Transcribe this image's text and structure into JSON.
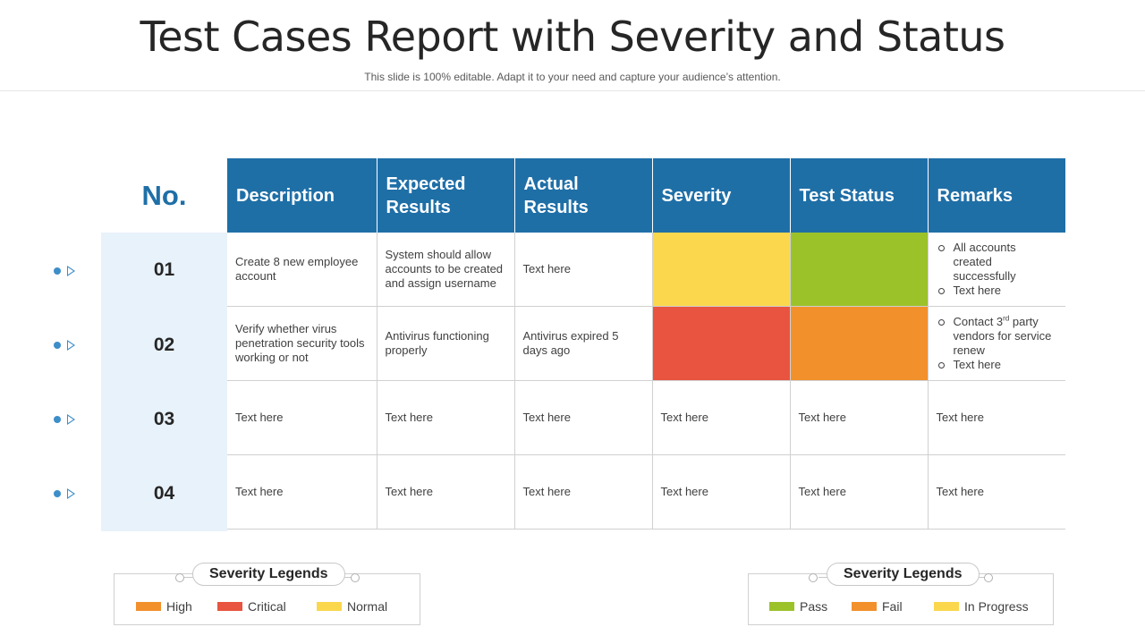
{
  "header": {
    "title": "Test Cases Report with Severity and Status",
    "subtitle": "This slide is 100% editable. Adapt it to your need and capture your audience’s attention."
  },
  "table": {
    "no_header": "No.",
    "columns": [
      "Description",
      "Expected Results",
      "Actual Results",
      "Severity",
      "Test Status",
      "Remarks"
    ],
    "rows": [
      {
        "no": "01",
        "description": "Create 8 new employee account",
        "expected": "System should allow accounts to be created and assign username",
        "actual": "Text here",
        "severity_color": "#fad74d",
        "status_color": "#9cc22a",
        "remarks": [
          "All accounts created successfully",
          "Text here"
        ]
      },
      {
        "no": "02",
        "description": "Verify whether virus penetration security tools working or not",
        "expected": "Antivirus functioning properly",
        "actual": "Antivirus expired 5 days ago",
        "severity_color": "#e85440",
        "status_color": "#f2902c",
        "remarks_first_pre": "Contact 3",
        "remarks_first_sup": "rd",
        "remarks_first_post": " party vendors for service renew",
        "remarks_second": "Text here"
      },
      {
        "no": "03",
        "description": "Text here",
        "expected": "Text here",
        "actual": "Text here",
        "severity": "Text here",
        "status": "Text here",
        "remarks": "Text here"
      },
      {
        "no": "04",
        "description": "Text here",
        "expected": "Text here",
        "actual": "Text here",
        "severity": "Text here",
        "status": "Text here",
        "remarks": "Text here"
      }
    ]
  },
  "legend_severity": {
    "title": "Severity Legends",
    "items": [
      {
        "label": "High",
        "color": "#f2902c"
      },
      {
        "label": "Critical",
        "color": "#e85440"
      },
      {
        "label": "Normal",
        "color": "#fad74d"
      }
    ]
  },
  "legend_status": {
    "title": "Severity Legends",
    "items": [
      {
        "label": "Pass",
        "color": "#9cc22a"
      },
      {
        "label": "Fail",
        "color": "#f2902c"
      },
      {
        "label": "In Progress",
        "color": "#fad74d"
      }
    ]
  },
  "colors": {
    "header_blue": "#1f6fa7",
    "number_column_bg": "#e8f2fa",
    "marker_blue": "#3d8ec9"
  }
}
